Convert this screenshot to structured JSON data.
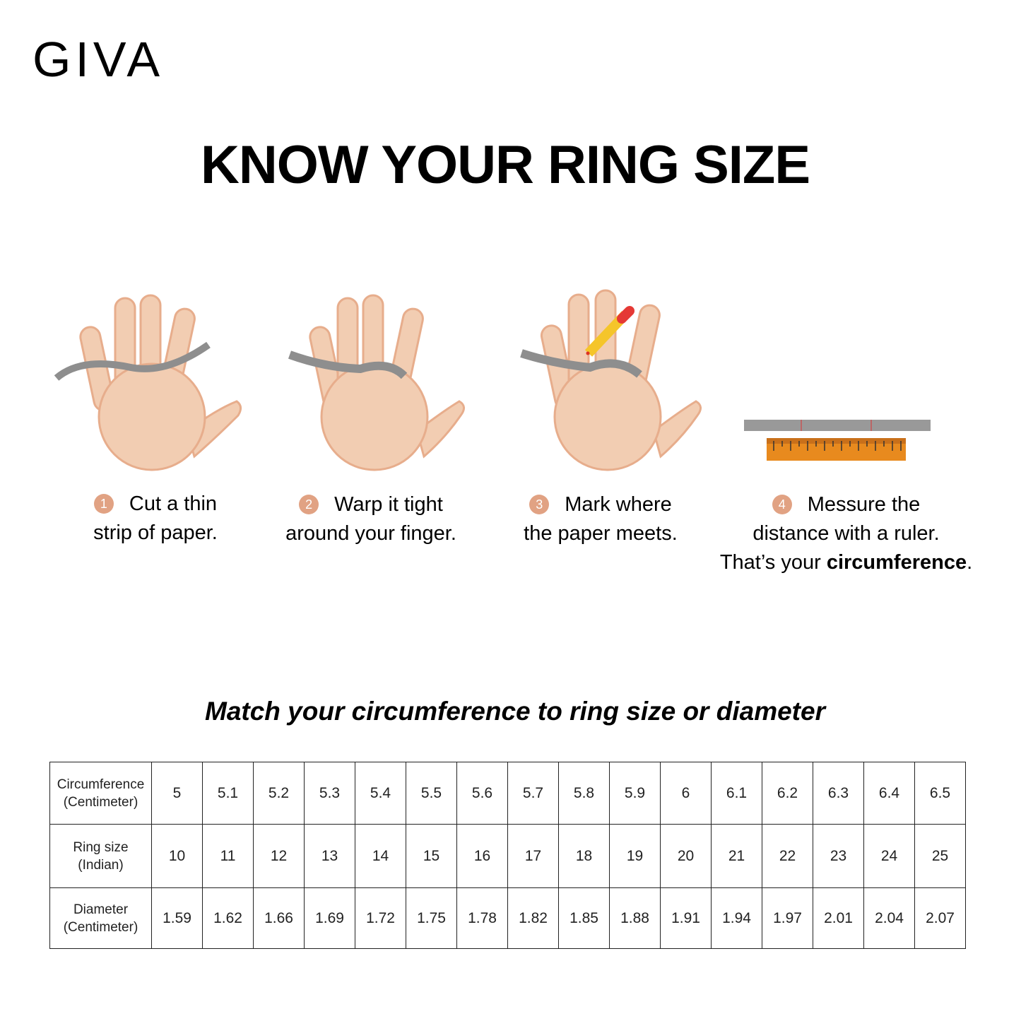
{
  "brand": {
    "logo": "GIVA"
  },
  "title": "KNOW YOUR RING SIZE",
  "steps": [
    {
      "number": "1",
      "line1": "Cut a thin",
      "line2": "strip of paper.",
      "icon": "hand-with-paper-strip-icon"
    },
    {
      "number": "2",
      "line1": "Warp it tight",
      "line2": "around your finger.",
      "icon": "hand-wrapped-finger-icon"
    },
    {
      "number": "3",
      "line1": "Mark where",
      "line2": "the paper meets.",
      "icon": "hand-with-pencil-icon"
    },
    {
      "number": "4",
      "line1": "Messure the",
      "line2": "distance with a ruler.",
      "line3_prefix": "That’s your ",
      "line3_bold": "circumference",
      "line3_suffix": ".",
      "icon": "ruler-icon"
    }
  ],
  "subtitle": "Match your circumference to ring size or diameter",
  "table": {
    "rows": [
      {
        "label1": "Circumference",
        "label2": "(Centimeter)",
        "values": [
          "5",
          "5.1",
          "5.2",
          "5.3",
          "5.4",
          "5.5",
          "5.6",
          "5.7",
          "5.8",
          "5.9",
          "6",
          "6.1",
          "6.2",
          "6.3",
          "6.4",
          "6.5"
        ]
      },
      {
        "label1": "Ring size",
        "label2": "(Indian)",
        "values": [
          "10",
          "11",
          "12",
          "13",
          "14",
          "15",
          "16",
          "17",
          "18",
          "19",
          "20",
          "21",
          "22",
          "23",
          "24",
          "25"
        ]
      },
      {
        "label1": "Diameter",
        "label2": "(Centimeter)",
        "values": [
          "1.59",
          "1.62",
          "1.66",
          "1.69",
          "1.72",
          "1.75",
          "1.78",
          "1.82",
          "1.85",
          "1.88",
          "1.91",
          "1.94",
          "1.97",
          "2.01",
          "2.04",
          "2.07"
        ]
      }
    ]
  },
  "colors": {
    "skin": "#f2cdb2",
    "skin_shadow": "#e7ad8c",
    "paper": "#8e8e8e",
    "ruler": "#e88a1e",
    "step_badge": "#e1a283"
  }
}
